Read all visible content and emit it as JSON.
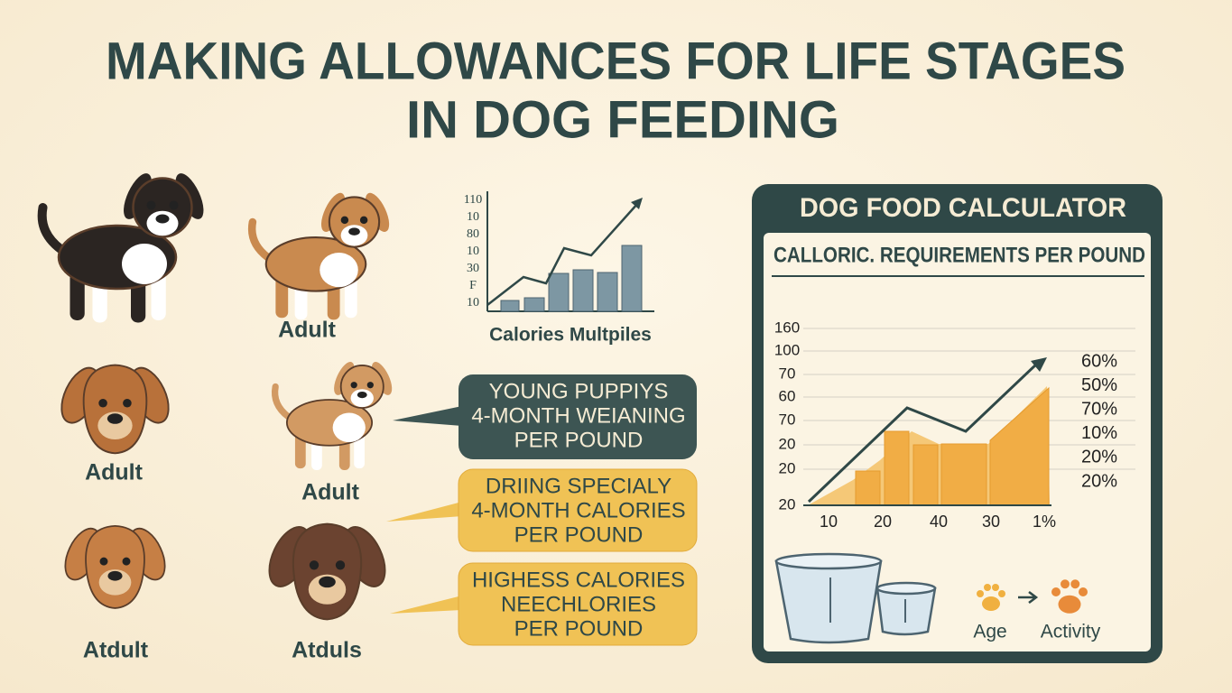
{
  "title": [
    "MAKING ALLOWANCES FOR LIFE STAGES",
    "IN DOG FEEDING"
  ],
  "dogs": [
    "Adult",
    "Adult",
    "Adult",
    "Atdult",
    "Atduls"
  ],
  "mini_chart": {
    "tick_labels": [
      "110",
      "10",
      "80",
      "10",
      "30",
      "F",
      "10"
    ],
    "caption": "Calories Multpiles"
  },
  "callouts": [
    [
      "YOUNG PUPPIYS",
      "4-MONTH WEIANING",
      "PER POUND"
    ],
    [
      "DRIING SPECIALY",
      "4-MONTH CALORIES",
      "PER POUND"
    ],
    [
      "HIGHESS CALORIES",
      "NEECHLORIES",
      "PER POUND"
    ]
  ],
  "calculator": {
    "title": "DOG FOOD CALCULATOR",
    "subtitle": "CALLORIC. REQUIREMENTS PER POUND",
    "y_labels": [
      "160",
      "100",
      "70",
      "60",
      "70",
      "20",
      "20",
      "20"
    ],
    "x_labels": [
      "10",
      "20",
      "40",
      "30",
      "1%"
    ],
    "side_labels": [
      "60%",
      "50%",
      "70%",
      "10%",
      "20%",
      "20%"
    ],
    "icons": [
      "Age",
      "Activity"
    ]
  }
}
